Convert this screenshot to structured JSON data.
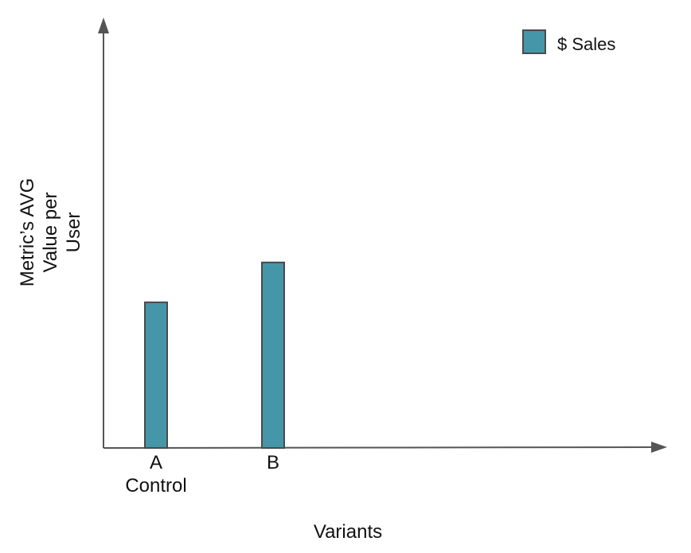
{
  "chart_data": {
    "type": "bar",
    "title": "",
    "xlabel": "Variants",
    "ylabel_lines": [
      "Metric’s AVG",
      "Value per",
      "User"
    ],
    "categories": [
      {
        "lines": [
          "A",
          "Control"
        ]
      },
      {
        "lines": [
          "B"
        ]
      }
    ],
    "series": [
      {
        "name": "$ Sales",
        "values": [
          4.2,
          5.35
        ],
        "color": "#4596a8"
      }
    ],
    "ylim": [
      0,
      12
    ],
    "grid": false,
    "legend": "top-right",
    "colors": {
      "axis": "#555555",
      "bar_stroke": "#4a4a4a",
      "text": "#111111"
    }
  }
}
